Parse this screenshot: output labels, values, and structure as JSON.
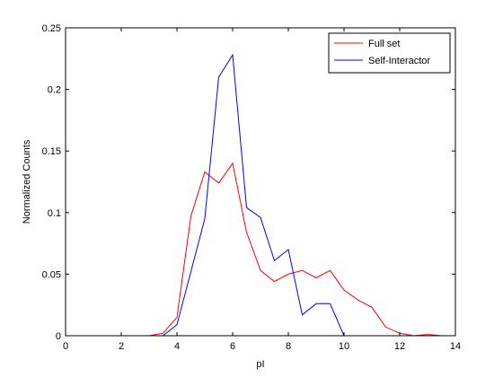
{
  "chart_data": {
    "type": "line",
    "title": "",
    "xlabel": "pI",
    "ylabel": "Normalized Counts",
    "xlim": [
      0,
      14
    ],
    "ylim": [
      0,
      0.25
    ],
    "xticks": [
      0,
      2,
      4,
      6,
      8,
      10,
      12,
      14
    ],
    "xtick_labels": [
      "0",
      "2",
      "4",
      "6",
      "8",
      "10",
      "12",
      "14"
    ],
    "yticks": [
      0,
      0.05,
      0.1,
      0.15,
      0.2,
      0.25
    ],
    "ytick_labels": [
      "0",
      "0.05",
      "0.1",
      "0.15",
      "0.2",
      "0.25"
    ],
    "grid": false,
    "legend_position": "top-right",
    "series": [
      {
        "name": "Full set",
        "color": "#ff0000",
        "x": [
          3,
          3.5,
          4,
          4.5,
          5,
          5.5,
          6,
          6.5,
          7,
          7.5,
          8,
          8.5,
          9,
          9.5,
          10,
          10.5,
          11,
          11.5,
          12,
          12.5,
          13,
          13.5
        ],
        "y": [
          0,
          0.002,
          0.015,
          0.097,
          0.133,
          0.124,
          0.14,
          0.084,
          0.053,
          0.044,
          0.05,
          0.053,
          0.047,
          0.053,
          0.037,
          0.029,
          0.023,
          0.007,
          0.002,
          0,
          0.001,
          0
        ]
      },
      {
        "name": "Self-Interactor",
        "color": "#0000ff",
        "x": [
          3.5,
          4,
          4.5,
          5,
          5.5,
          6,
          6.5,
          7,
          7.5,
          8,
          8.5,
          9,
          9.5,
          10
        ],
        "y": [
          0,
          0.009,
          0.052,
          0.095,
          0.21,
          0.228,
          0.104,
          0.096,
          0.061,
          0.07,
          0.017,
          0.026,
          0.026,
          0
        ]
      }
    ]
  }
}
